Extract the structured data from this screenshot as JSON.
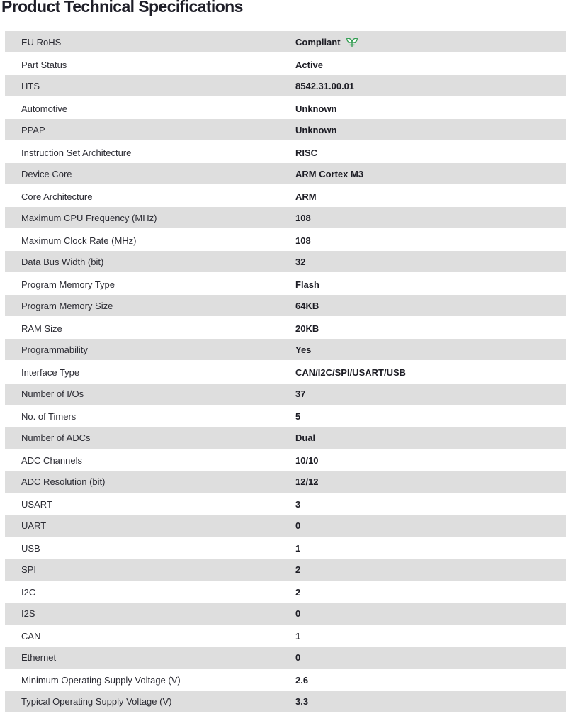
{
  "page": {
    "title": "Product Technical Specifications"
  },
  "colors": {
    "row_alt_bg": "#dedede",
    "label_text": "#2c2c34",
    "value_text": "#1d1d25",
    "title_text": "#1e1e28",
    "compliance_green": "#2e9b4e"
  },
  "icons": {
    "rohs_compliance": "leaf-icon"
  },
  "table": {
    "rows": [
      {
        "label": "EU RoHS",
        "value": "Compliant",
        "icon": "leaf-icon"
      },
      {
        "label": "Part Status",
        "value": "Active"
      },
      {
        "label": "HTS",
        "value": "8542.31.00.01"
      },
      {
        "label": "Automotive",
        "value": "Unknown"
      },
      {
        "label": "PPAP",
        "value": "Unknown"
      },
      {
        "label": "Instruction Set Architecture",
        "value": "RISC"
      },
      {
        "label": "Device Core",
        "value": "ARM Cortex M3"
      },
      {
        "label": "Core Architecture",
        "value": "ARM"
      },
      {
        "label": "Maximum CPU Frequency (MHz)",
        "value": "108"
      },
      {
        "label": "Maximum Clock Rate (MHz)",
        "value": "108"
      },
      {
        "label": "Data Bus Width (bit)",
        "value": "32"
      },
      {
        "label": "Program Memory Type",
        "value": "Flash"
      },
      {
        "label": "Program Memory Size",
        "value": "64KB"
      },
      {
        "label": "RAM Size",
        "value": "20KB"
      },
      {
        "label": "Programmability",
        "value": "Yes"
      },
      {
        "label": "Interface Type",
        "value": "CAN/I2C/SPI/USART/USB"
      },
      {
        "label": "Number of I/Os",
        "value": "37"
      },
      {
        "label": "No. of Timers",
        "value": "5"
      },
      {
        "label": "Number of ADCs",
        "value": "Dual"
      },
      {
        "label": "ADC Channels",
        "value": "10/10"
      },
      {
        "label": "ADC Resolution (bit)",
        "value": "12/12"
      },
      {
        "label": "USART",
        "value": "3"
      },
      {
        "label": "UART",
        "value": "0"
      },
      {
        "label": "USB",
        "value": "1"
      },
      {
        "label": "SPI",
        "value": "2"
      },
      {
        "label": "I2C",
        "value": "2"
      },
      {
        "label": "I2S",
        "value": "0"
      },
      {
        "label": "CAN",
        "value": "1"
      },
      {
        "label": "Ethernet",
        "value": "0"
      },
      {
        "label": "Minimum Operating Supply Voltage (V)",
        "value": "2.6"
      },
      {
        "label": "Typical Operating Supply Voltage (V)",
        "value": "3.3"
      }
    ]
  }
}
